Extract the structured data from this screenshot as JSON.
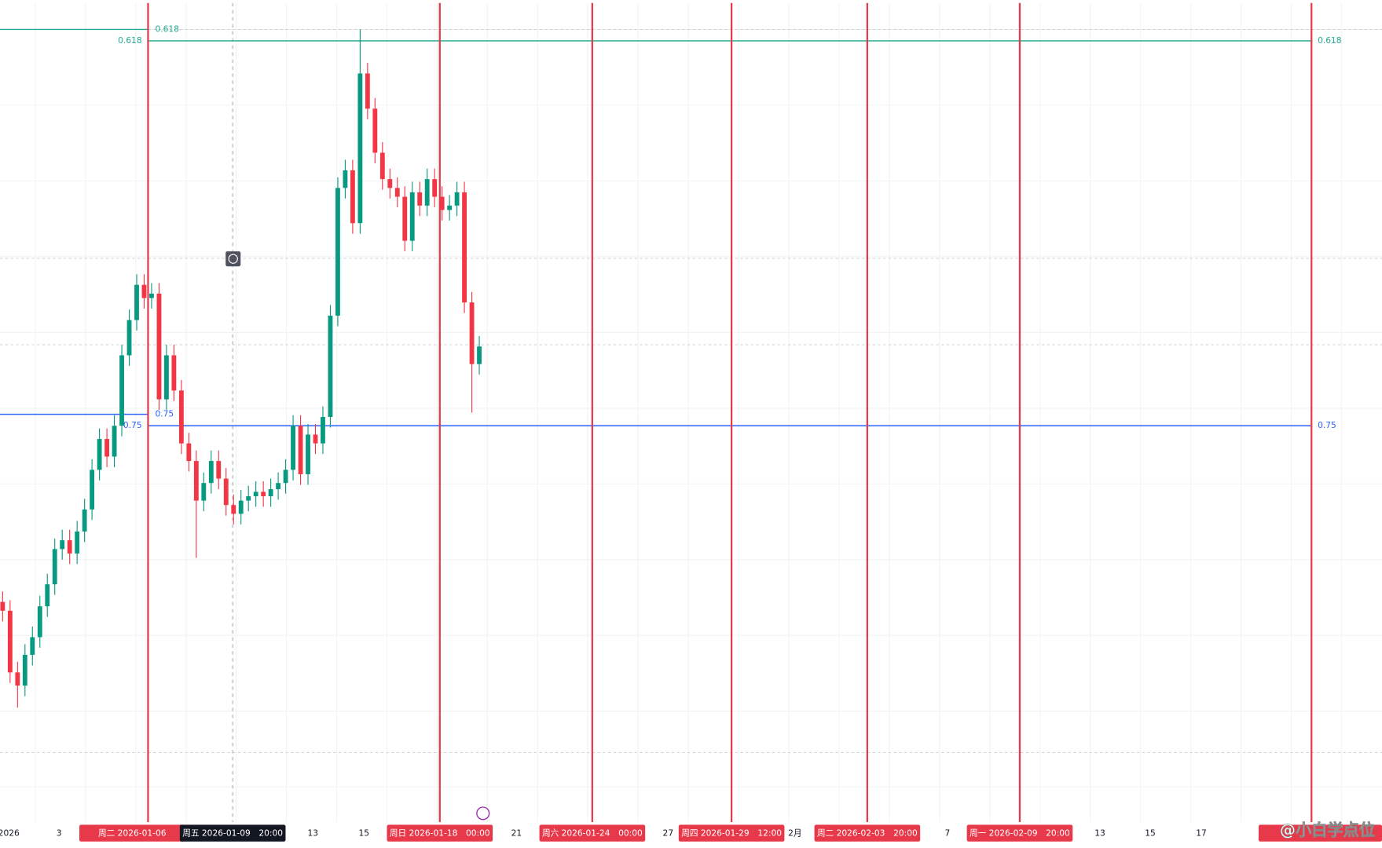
{
  "chart_data": {
    "type": "candlestick",
    "ylim": [
      0,
      930
    ],
    "up_color": "#089981",
    "down_color": "#f23645",
    "open": [
      250,
      240,
      170,
      155,
      190,
      210,
      245,
      270,
      310,
      320,
      305,
      330,
      355,
      400,
      435,
      415,
      450,
      530,
      570,
      610,
      595,
      600,
      480,
      530,
      490,
      430,
      410,
      365,
      385,
      410,
      390,
      360,
      350,
      365,
      370,
      375,
      370,
      378,
      385,
      400,
      450,
      395,
      440,
      430,
      460,
      575,
      720,
      740,
      680,
      850,
      810,
      760,
      730,
      720,
      710,
      660,
      715,
      700,
      730,
      710,
      695,
      700,
      715,
      590,
      520
    ],
    "high": [
      262,
      252,
      182,
      202,
      222,
      257,
      282,
      322,
      332,
      332,
      342,
      367,
      412,
      447,
      447,
      462,
      542,
      582,
      622,
      622,
      612,
      612,
      542,
      542,
      502,
      442,
      422,
      397,
      422,
      422,
      402,
      372,
      377,
      382,
      387,
      387,
      390,
      397,
      412,
      462,
      462,
      452,
      452,
      472,
      587,
      732,
      752,
      752,
      900,
      862,
      822,
      772,
      742,
      732,
      722,
      727,
      727,
      742,
      742,
      722,
      712,
      727,
      727,
      602,
      552
    ],
    "low": [
      228,
      158,
      130,
      143,
      178,
      198,
      233,
      258,
      298,
      293,
      293,
      318,
      343,
      388,
      403,
      403,
      438,
      518,
      558,
      583,
      583,
      468,
      468,
      478,
      418,
      398,
      300,
      353,
      373,
      378,
      348,
      338,
      338,
      353,
      358,
      358,
      358,
      366,
      373,
      388,
      383,
      383,
      418,
      418,
      448,
      563,
      708,
      668,
      668,
      798,
      748,
      718,
      708,
      698,
      648,
      648,
      688,
      688,
      698,
      683,
      683,
      688,
      578,
      465,
      508
    ],
    "close": [
      240,
      170,
      155,
      190,
      210,
      245,
      270,
      310,
      320,
      305,
      330,
      355,
      400,
      435,
      415,
      450,
      530,
      570,
      610,
      595,
      600,
      480,
      530,
      490,
      430,
      410,
      365,
      385,
      410,
      390,
      360,
      350,
      365,
      370,
      375,
      370,
      378,
      385,
      400,
      450,
      395,
      440,
      430,
      460,
      575,
      720,
      740,
      680,
      850,
      810,
      760,
      730,
      720,
      710,
      660,
      715,
      700,
      730,
      710,
      695,
      700,
      715,
      590,
      520,
      540
    ],
    "fib_levels": [
      {
        "label": "0.618",
        "value": 887,
        "color": "#22ab94"
      },
      {
        "label": "0.75",
        "value": 450,
        "color": "#2962ff"
      }
    ],
    "fib_levels_previous": [
      {
        "label": "0.618",
        "value": 900,
        "color": "#22ab94"
      },
      {
        "label": "0.75",
        "value": 463,
        "color": "#2962ff"
      }
    ],
    "marker_color": "#e8394a",
    "x_labels": [
      {
        "text": "2026",
        "kind": "plain"
      },
      {
        "text": "3",
        "kind": "plain"
      },
      {
        "text": "周二 2026-01-06",
        "kind": "marker"
      },
      {
        "text": "周五 2026-01-09　20:00",
        "kind": "crosshair"
      },
      {
        "text": "13",
        "kind": "plain"
      },
      {
        "text": "15",
        "kind": "plain"
      },
      {
        "text": "周日 2026-01-18　00:00",
        "kind": "marker"
      },
      {
        "text": "21",
        "kind": "plain"
      },
      {
        "text": "周六 2026-01-24　00:00",
        "kind": "marker"
      },
      {
        "text": "27",
        "kind": "plain"
      },
      {
        "text": "周四 2026-01-29　12:00",
        "kind": "marker"
      },
      {
        "text": "2月",
        "kind": "plain"
      },
      {
        "text": "周二 2026-02-03　20:00",
        "kind": "marker"
      },
      {
        "text": "7",
        "kind": "plain"
      },
      {
        "text": "周一 2026-02-09　20:00",
        "kind": "marker"
      },
      {
        "text": "13",
        "kind": "plain"
      },
      {
        "text": "15",
        "kind": "plain"
      },
      {
        "text": "17",
        "kind": "plain"
      }
    ],
    "watermark": "@小白学点位"
  }
}
